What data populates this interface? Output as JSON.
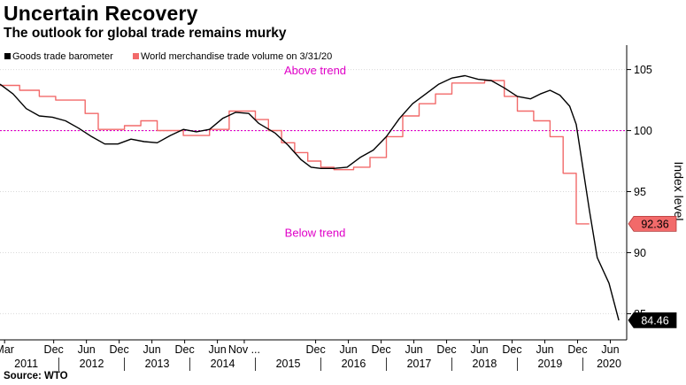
{
  "title": "Uncertain Recovery",
  "subtitle": "The outlook for global trade remains murky",
  "source": "Source: WTO",
  "chart_data": {
    "type": "line",
    "ylabel": "Index level",
    "ylim": [
      83,
      107
    ],
    "yticks": [
      85,
      90,
      95,
      100,
      105
    ],
    "trend_value": 100,
    "trend_color": "#e000c8",
    "annotations": {
      "above": "Above trend",
      "below": "Below trend"
    },
    "xticks": [
      {
        "label": "Mar",
        "x": 2011.17
      },
      {
        "label": "Dec",
        "x": 2011.92
      },
      {
        "label": "Jun",
        "x": 2012.42
      },
      {
        "label": "Dec",
        "x": 2012.92
      },
      {
        "label": "Jun",
        "x": 2013.42
      },
      {
        "label": "Dec",
        "x": 2013.92
      },
      {
        "label": "Jun",
        "x": 2014.42
      },
      {
        "label": "Nov ...",
        "x": 2014.83
      },
      {
        "label": "Dec",
        "x": 2015.92
      },
      {
        "label": "Jun",
        "x": 2016.42
      },
      {
        "label": "Dec",
        "x": 2016.92
      },
      {
        "label": "Jun",
        "x": 2017.42
      },
      {
        "label": "Dec",
        "x": 2017.92
      },
      {
        "label": "Jun",
        "x": 2018.42
      },
      {
        "label": "Dec",
        "x": 2018.92
      },
      {
        "label": "Jun",
        "x": 2019.42
      },
      {
        "label": "Dec",
        "x": 2019.92
      },
      {
        "label": "Jun",
        "x": 2020.42
      }
    ],
    "years": [
      {
        "label": "2011",
        "x": 2011.5
      },
      {
        "label": "2012",
        "x": 2012.5
      },
      {
        "label": "2013",
        "x": 2013.5
      },
      {
        "label": "2014",
        "x": 2014.5
      },
      {
        "label": "2015",
        "x": 2015.5
      },
      {
        "label": "2016",
        "x": 2016.5
      },
      {
        "label": "2017",
        "x": 2017.5
      },
      {
        "label": "2018",
        "x": 2018.5
      },
      {
        "label": "2019",
        "x": 2019.5
      },
      {
        "label": "2020",
        "x": 2020.4
      }
    ],
    "series": [
      {
        "name": "Goods trade barometer",
        "color": "#000000",
        "last_label": "84.46",
        "points": [
          [
            2011.1,
            103.8
          ],
          [
            2011.3,
            103.0
          ],
          [
            2011.5,
            101.8
          ],
          [
            2011.7,
            101.2
          ],
          [
            2011.9,
            101.1
          ],
          [
            2012.1,
            100.8
          ],
          [
            2012.3,
            100.2
          ],
          [
            2012.5,
            99.5
          ],
          [
            2012.7,
            98.9
          ],
          [
            2012.9,
            98.9
          ],
          [
            2013.1,
            99.3
          ],
          [
            2013.3,
            99.1
          ],
          [
            2013.5,
            99.0
          ],
          [
            2013.7,
            99.6
          ],
          [
            2013.9,
            100.1
          ],
          [
            2014.1,
            99.9
          ],
          [
            2014.3,
            100.1
          ],
          [
            2014.5,
            101.0
          ],
          [
            2014.7,
            101.5
          ],
          [
            2014.9,
            101.4
          ],
          [
            2015.05,
            100.6
          ],
          [
            2015.3,
            99.8
          ],
          [
            2015.5,
            98.8
          ],
          [
            2015.7,
            97.6
          ],
          [
            2015.85,
            97.0
          ],
          [
            2016.0,
            96.9
          ],
          [
            2016.2,
            96.9
          ],
          [
            2016.4,
            97.0
          ],
          [
            2016.6,
            97.8
          ],
          [
            2016.8,
            98.4
          ],
          [
            2017.0,
            99.5
          ],
          [
            2017.2,
            101.0
          ],
          [
            2017.4,
            102.2
          ],
          [
            2017.6,
            103.0
          ],
          [
            2017.8,
            103.8
          ],
          [
            2018.0,
            104.3
          ],
          [
            2018.2,
            104.5
          ],
          [
            2018.4,
            104.2
          ],
          [
            2018.6,
            104.1
          ],
          [
            2018.8,
            103.5
          ],
          [
            2019.0,
            102.8
          ],
          [
            2019.2,
            102.6
          ],
          [
            2019.35,
            103.0
          ],
          [
            2019.5,
            103.3
          ],
          [
            2019.65,
            102.9
          ],
          [
            2019.8,
            102.0
          ],
          [
            2019.9,
            100.5
          ],
          [
            2020.0,
            97.0
          ],
          [
            2020.1,
            93.5
          ],
          [
            2020.22,
            89.6
          ],
          [
            2020.4,
            87.5
          ],
          [
            2020.55,
            84.46
          ]
        ]
      },
      {
        "name": "World merchandise trade volume on 3/31/20",
        "color": "#f26a6a",
        "last_label": "92.36",
        "points": [
          [
            2011.1,
            103.7
          ],
          [
            2011.4,
            103.7
          ],
          [
            2011.4,
            103.3
          ],
          [
            2011.7,
            103.3
          ],
          [
            2011.7,
            102.8
          ],
          [
            2011.95,
            102.8
          ],
          [
            2011.95,
            102.5
          ],
          [
            2012.4,
            102.5
          ],
          [
            2012.4,
            101.4
          ],
          [
            2012.6,
            101.4
          ],
          [
            2012.6,
            100.1
          ],
          [
            2013.0,
            100.1
          ],
          [
            2013.0,
            100.4
          ],
          [
            2013.25,
            100.4
          ],
          [
            2013.25,
            100.8
          ],
          [
            2013.5,
            100.8
          ],
          [
            2013.5,
            100.0
          ],
          [
            2013.9,
            100.0
          ],
          [
            2013.9,
            99.6
          ],
          [
            2014.3,
            99.6
          ],
          [
            2014.3,
            100.1
          ],
          [
            2014.6,
            100.1
          ],
          [
            2014.6,
            101.6
          ],
          [
            2015.0,
            101.6
          ],
          [
            2015.0,
            100.9
          ],
          [
            2015.2,
            100.9
          ],
          [
            2015.2,
            100.0
          ],
          [
            2015.4,
            100.0
          ],
          [
            2015.4,
            99.0
          ],
          [
            2015.6,
            99.0
          ],
          [
            2015.6,
            98.2
          ],
          [
            2015.8,
            98.2
          ],
          [
            2015.8,
            97.5
          ],
          [
            2016.0,
            97.5
          ],
          [
            2016.0,
            97.0
          ],
          [
            2016.2,
            97.0
          ],
          [
            2016.2,
            96.8
          ],
          [
            2016.5,
            96.8
          ],
          [
            2016.5,
            97.0
          ],
          [
            2016.75,
            97.0
          ],
          [
            2016.75,
            97.8
          ],
          [
            2017.0,
            97.8
          ],
          [
            2017.0,
            99.5
          ],
          [
            2017.25,
            99.5
          ],
          [
            2017.25,
            101.2
          ],
          [
            2017.5,
            101.2
          ],
          [
            2017.5,
            102.2
          ],
          [
            2017.75,
            102.2
          ],
          [
            2017.75,
            103.0
          ],
          [
            2018.0,
            103.0
          ],
          [
            2018.0,
            103.9
          ],
          [
            2018.5,
            103.9
          ],
          [
            2018.5,
            104.1
          ],
          [
            2018.8,
            104.1
          ],
          [
            2018.8,
            102.8
          ],
          [
            2019.0,
            102.8
          ],
          [
            2019.0,
            101.6
          ],
          [
            2019.25,
            101.6
          ],
          [
            2019.25,
            100.8
          ],
          [
            2019.5,
            100.8
          ],
          [
            2019.5,
            99.5
          ],
          [
            2019.7,
            99.5
          ],
          [
            2019.7,
            96.5
          ],
          [
            2019.9,
            96.5
          ],
          [
            2019.9,
            92.36
          ],
          [
            2020.1,
            92.36
          ]
        ]
      }
    ]
  }
}
